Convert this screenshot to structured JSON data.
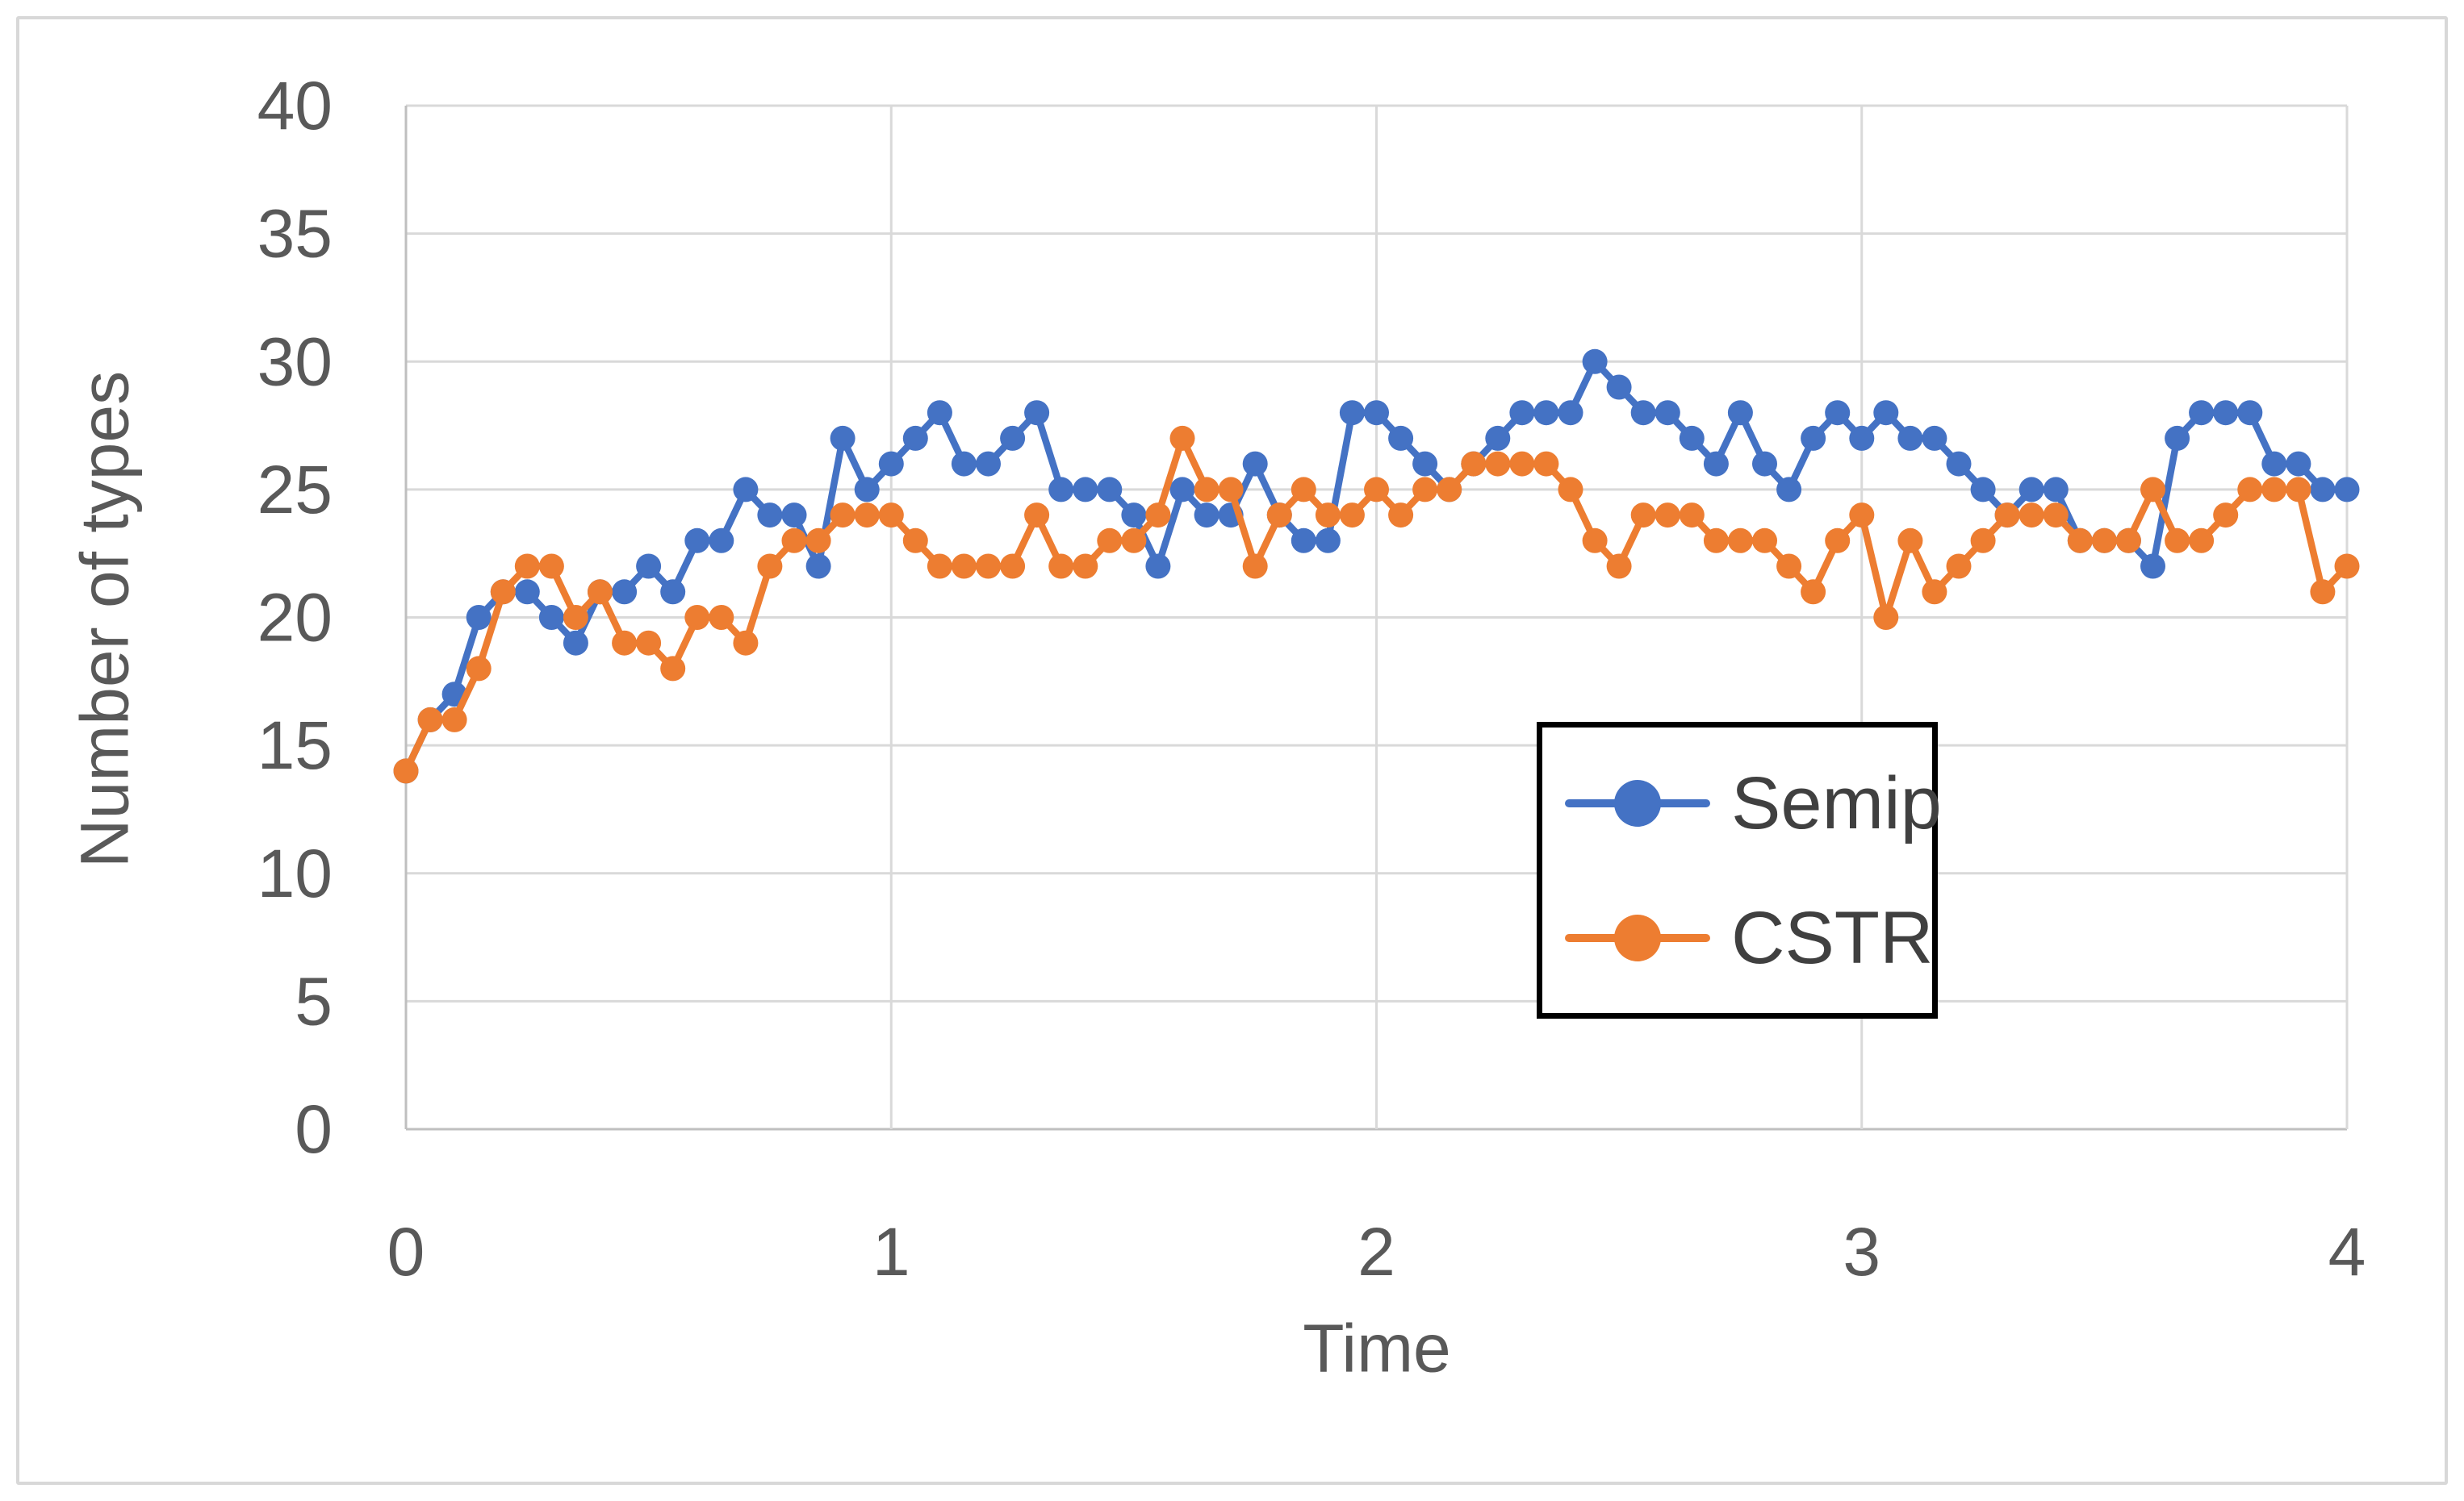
{
  "figure": {
    "background": "#ffffff",
    "frame_color": "#d8d8d8"
  },
  "chart_data": {
    "type": "line",
    "title": "",
    "xlabel": "Time",
    "ylabel": "Number of types",
    "xlim": [
      0,
      4
    ],
    "ylim": [
      0,
      40
    ],
    "x_ticks": [
      0,
      1,
      2,
      3,
      4
    ],
    "y_ticks": [
      0,
      5,
      10,
      15,
      20,
      25,
      30,
      35,
      40
    ],
    "grid": true,
    "x_start": 0,
    "x_step": 0.05,
    "legend_position": "inside-lower-right",
    "styles": {
      "gridline_color": "#d9d9d9",
      "axis_line_color": "#bfbfbf",
      "tick_label_color": "#595959",
      "legend_text_color": "#404040",
      "legend_border_color": "#000000",
      "marker": "circle"
    },
    "series": [
      {
        "name": "Semip",
        "color": "#4472C4",
        "values": [
          14,
          16,
          17,
          20,
          21,
          21,
          20,
          19,
          21,
          21,
          22,
          21,
          23,
          23,
          25,
          24,
          24,
          22,
          27,
          25,
          26,
          27,
          28,
          26,
          26,
          27,
          28,
          25,
          25,
          25,
          24,
          22,
          25,
          24,
          24,
          26,
          24,
          23,
          23,
          28,
          28,
          27,
          26,
          25,
          26,
          27,
          28,
          28,
          28,
          30,
          29,
          28,
          28,
          27,
          26,
          28,
          26,
          25,
          27,
          28,
          27,
          28,
          27,
          27,
          26,
          25,
          24,
          25,
          25,
          23,
          23,
          23,
          22,
          27,
          28,
          28,
          28,
          26,
          26,
          25,
          25
        ]
      },
      {
        "name": "CSTR",
        "color": "#ED7D31",
        "values": [
          14,
          16,
          16,
          18,
          21,
          22,
          22,
          20,
          21,
          19,
          19,
          18,
          20,
          20,
          19,
          22,
          23,
          23,
          24,
          24,
          24,
          23,
          22,
          22,
          22,
          22,
          24,
          22,
          22,
          23,
          23,
          24,
          27,
          25,
          25,
          22,
          24,
          25,
          24,
          24,
          25,
          24,
          25,
          25,
          26,
          26,
          26,
          26,
          25,
          23,
          22,
          24,
          24,
          24,
          23,
          23,
          23,
          22,
          21,
          23,
          24,
          20,
          23,
          21,
          22,
          23,
          24,
          24,
          24,
          23,
          23,
          23,
          25,
          23,
          23,
          24,
          25,
          25,
          25,
          21,
          22
        ]
      }
    ]
  }
}
